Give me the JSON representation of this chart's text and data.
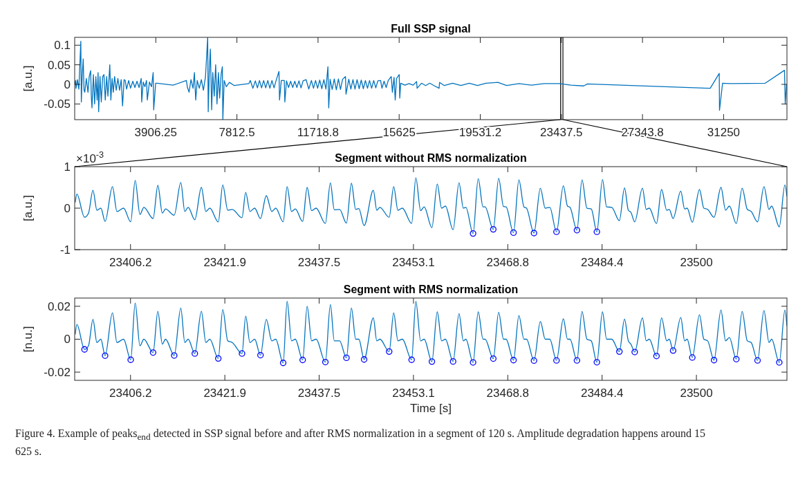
{
  "chart_data": [
    {
      "type": "line",
      "title": "Full SSP signal",
      "ylabel": "[a.u.]",
      "xlim": [
        0,
        34300
      ],
      "ylim": [
        -0.09,
        0.12
      ],
      "xticks": [
        3906.25,
        7812.5,
        {
          "value": 11718.75,
          "label": "11718.8"
        },
        15625,
        {
          "value": 19531.25,
          "label": "19531.2"
        },
        23437.5,
        {
          "value": 27343.75,
          "label": "27343.8"
        },
        31250
      ],
      "yticks": [
        -0.05,
        0,
        0.05,
        0.1
      ],
      "bands": [
        {
          "axis": "x",
          "from": 23397,
          "to": 23515,
          "color": "#000000"
        }
      ],
      "series": [
        {
          "color": "#0072bd",
          "x": [
            0,
            40,
            64,
            128,
            200,
            295,
            320,
            360,
            410,
            450,
            487,
            560,
            640,
            700,
            769,
            800,
            833,
            900,
            960,
            1020,
            1080,
            1127,
            1153,
            1220,
            1280,
            1350,
            1409,
            1473,
            1540,
            1600,
            1691,
            1742,
            1800,
            1860,
            1922,
            2000,
            2080,
            2160,
            2240,
            2306,
            2380,
            2434,
            2500,
            2600,
            2690,
            2800,
            2900,
            3000,
            3100,
            3203,
            3228,
            3300,
            3380,
            3459,
            3497,
            3600,
            3700,
            3779,
            3805,
            3900,
            3971,
            4740,
            5380,
            5430,
            5508,
            5600,
            5700,
            5765,
            5829,
            5900,
            6000,
            6100,
            6200,
            6300,
            6405,
            6431,
            6480,
            6533,
            6597,
            6650,
            6720,
            6789,
            6853,
            6920,
            6980,
            7050,
            7110,
            7135,
            7199,
            7300,
            7450,
            7686,
            8391,
            8455,
            8583,
            8700,
            8800,
            8900,
            9000,
            9100,
            9200,
            9300,
            9400,
            9500,
            9600,
            9700,
            9838,
            9864,
            9950,
            10094,
            10120,
            10200,
            10300,
            10400,
            10500,
            10600,
            10700,
            10800,
            10900,
            11000,
            11145,
            11273,
            11400,
            11500,
            11600,
            11700,
            11800,
            11900,
            12000,
            12100,
            12195,
            12234,
            12300,
            12400,
            12500,
            12600,
            12700,
            12800,
            12900,
            13041,
            13066,
            13200,
            13300,
            13400,
            13500,
            13600,
            13700,
            13800,
            13900,
            14000,
            14100,
            14200,
            14300,
            14400,
            14500,
            14600,
            14732,
            14796,
            14900,
            15000,
            15100,
            15244,
            15300,
            15380,
            15436,
            15500,
            15628,
            15654,
            15701,
            15900,
            16100,
            16300,
            16465,
            16490,
            16700,
            16900,
            17100,
            17300,
            17548,
            17573,
            17800,
            18200,
            18600,
            19000,
            19400,
            19800,
            20383,
            20800,
            21400,
            22000,
            22600,
            23340,
            23900,
            24509,
            24695,
            30607,
            31040,
            31052,
            31200,
            31593,
            33257,
            34181,
            34218,
            34280
          ],
          "values": [
            0,
            0.01,
            -0.01,
            0.012,
            -0.012,
            0.11,
            -0.045,
            0.02,
            0.065,
            -0.015,
            -0.02,
            0.015,
            -0.02,
            0.02,
            0.035,
            -0.03,
            -0.06,
            0.025,
            -0.05,
            0.02,
            -0.04,
            0.03,
            -0.07,
            0.02,
            -0.045,
            0.02,
            0.025,
            -0.04,
            0.02,
            -0.03,
            0.05,
            -0.04,
            0.015,
            -0.02,
            0.02,
            -0.015,
            0.015,
            -0.015,
            0.012,
            -0.055,
            0.012,
            0.01,
            -0.012,
            0.01,
            -0.01,
            0.008,
            -0.008,
            0.008,
            -0.008,
            0.015,
            -0.045,
            0.006,
            -0.006,
            0.01,
            -0.04,
            0.006,
            -0.006,
            0.03,
            -0.065,
            0.003,
            0.003,
            -0.002,
            0.01,
            -0.008,
            -0.02,
            0.012,
            -0.01,
            0.03,
            -0.04,
            0.01,
            -0.01,
            0.012,
            -0.015,
            0.02,
            0.12,
            -0.07,
            0.03,
            0.09,
            -0.065,
            0.03,
            -0.03,
            0.05,
            -0.05,
            0.03,
            -0.035,
            0.025,
            0.045,
            -0.09,
            0.01,
            -0.006,
            0.005,
            -0.003,
            0.002,
            0.01,
            -0.01,
            0.009,
            -0.009,
            0.01,
            -0.009,
            0.01,
            -0.009,
            0.01,
            -0.01,
            0.01,
            -0.009,
            0.01,
            0.033,
            -0.04,
            0.01,
            0.01,
            -0.045,
            0.009,
            -0.008,
            0.008,
            -0.008,
            0.008,
            -0.008,
            0.009,
            -0.009,
            0.009,
            0.012,
            -0.012,
            0.01,
            -0.01,
            0.01,
            -0.01,
            0.011,
            -0.011,
            0.012,
            -0.012,
            0.045,
            -0.06,
            0.013,
            -0.013,
            0.014,
            -0.014,
            0.014,
            -0.013,
            0.013,
            0.02,
            -0.025,
            0.013,
            -0.012,
            0.012,
            -0.012,
            0.012,
            -0.011,
            0.011,
            -0.011,
            0.01,
            -0.01,
            0.01,
            -0.01,
            0.01,
            -0.009,
            0.009,
            0.01,
            -0.01,
            0.008,
            -0.008,
            0.01,
            0.02,
            -0.02,
            0.018,
            -0.04,
            0.015,
            0.025,
            -0.035,
            0.003,
            -0.002,
            0.002,
            -0.002,
            0.007,
            -0.01,
            0.003,
            -0.003,
            0.003,
            -0.003,
            -0.01,
            0.005,
            -0.003,
            0.003,
            -0.003,
            0.003,
            -0.003,
            0.003,
            0.005,
            -0.003,
            0.002,
            -0.002,
            0.002,
            0.002,
            -0.002,
            -0.004,
            0.001,
            -0.01,
            0.028,
            -0.066,
            0.003,
            0.002,
            0.003,
            0.036,
            -0.05,
            0
          ]
        }
      ]
    },
    {
      "type": "line",
      "title": "Segment without RMS normalization",
      "ylabel": "[a.u.]",
      "annotations": [
        "×10$^{-3}$"
      ],
      "xlim": [
        23397,
        23515
      ],
      "ylim": [
        -1,
        1
      ],
      "xticks": [
        {
          "value": 23406.25,
          "label": "23406.2"
        },
        {
          "value": 23421.875,
          "label": "23421.9"
        },
        23437.5,
        {
          "value": 23453.125,
          "label": "23453.1"
        },
        {
          "value": 23468.75,
          "label": "23468.8"
        },
        {
          "value": 23484.375,
          "label": "23484.4"
        },
        23500
      ],
      "yticks": [
        -1,
        0,
        1
      ],
      "x": [
        23397.1,
        23397.36,
        23398.63,
        23399.29,
        23400.03,
        23400.68,
        23401.34,
        23402.04,
        23403.26,
        23404.0,
        23405.1,
        23406.28,
        23407.02,
        23407.81,
        23408.46,
        23409.99,
        23410.78,
        23411.52,
        23412.05,
        23413.49,
        23414.58,
        23415.24,
        23415.8,
        23416.9,
        23417.99,
        23418.73,
        23419.39,
        23420.79,
        23421.53,
        23422.36,
        23423.1,
        23424.72,
        23425.33,
        23426.03,
        23426.82,
        23427.78,
        23428.74,
        23429.66,
        23430.31,
        23431.54,
        23432.19,
        23432.93,
        23433.55,
        23434.77,
        23435.51,
        23436.26,
        23437.0,
        23438.53,
        23439.36,
        23440.01,
        23440.89,
        23442.02,
        23442.85,
        23443.55,
        23444.08,
        23444.95,
        23446.48,
        23447.05,
        23447.57,
        23449.1,
        23449.85,
        23450.55,
        23451.29,
        23452.82,
        23453.52,
        23454.31,
        23454.9,
        23456.18,
        23457.07,
        23457.79,
        23458.42,
        23459.69,
        23460.67,
        23461.39,
        23461.81,
        23463.0,
        23463.85,
        23464.65,
        23464.99,
        23466.35,
        23467.24,
        23468.04,
        23468.47,
        23469.7,
        23470.59,
        23471.43,
        23471.86,
        23473.09,
        23474.15,
        23474.95,
        23475.71,
        23476.82,
        23477.96,
        23478.64,
        23479.06,
        23480.21,
        23481.05,
        23481.86,
        23482.58,
        23483.51,
        23484.44,
        23485.12,
        23485.97,
        23487.24,
        23488.09,
        23488.72,
        23489.15,
        23489.78,
        23491.06,
        23491.69,
        23492.2,
        23493.39,
        23494.23,
        23495.08,
        23495.51,
        23496.14,
        23497.41,
        23498.05,
        23498.47,
        23499.32,
        23500.51,
        23501.23,
        23501.86,
        23502.92,
        23504.07,
        23504.83,
        23505.46,
        23506.61,
        23507.58,
        23508.43,
        23509.07,
        23510.13,
        23511.19,
        23512.03,
        23512.46,
        23513.73,
        23514.66,
        23515.0
      ],
      "series": [
        {
          "color": "#0072bd",
          "values": [
            0.14,
            0.34,
            -0.22,
            -0.12,
            0.43,
            -0.05,
            0,
            -0.32,
            0.52,
            -0.08,
            0,
            -0.33,
            0.67,
            -0.15,
            0.02,
            -0.25,
            0.55,
            -0.12,
            -0.02,
            -0.17,
            0.62,
            -0.08,
            0.02,
            -0.28,
            0.5,
            -0.08,
            0,
            -0.33,
            0.56,
            -0.05,
            -0.03,
            -0.23,
            0.38,
            -0.08,
            0,
            -0.25,
            0.3,
            -0.08,
            0,
            -0.33,
            0.52,
            -0.08,
            -0.02,
            -0.32,
            0.5,
            -0.06,
            0,
            -0.37,
            0.61,
            -0.04,
            -0.03,
            -0.36,
            0.6,
            -0.03,
            -0.01,
            -0.42,
            0.43,
            -0.05,
            0.02,
            -0.22,
            0.52,
            -0.05,
            0,
            -0.37,
            0.73,
            -0.06,
            0.03,
            -0.47,
            0.58,
            0,
            0.05,
            -0.52,
            0.61,
            0,
            0.02,
            -0.61,
            0.71,
            0.03,
            0.03,
            -0.51,
            0.72,
            0.04,
            0.03,
            -0.59,
            0.68,
            0.03,
            0,
            -0.6,
            0.48,
            0,
            0.02,
            -0.57,
            0.54,
            0.05,
            0.02,
            -0.53,
            0.68,
            0,
            -0.02,
            -0.57,
            0.69,
            0.03,
            0.02,
            -0.3,
            0.49,
            -0.05,
            -0.1,
            -0.33,
            0.48,
            -0.03,
            0,
            -0.37,
            0.45,
            -0.05,
            -0.03,
            -0.25,
            0.41,
            -0.02,
            0,
            -0.34,
            0.45,
            0,
            -0.03,
            -0.22,
            0.5,
            -0.05,
            0.05,
            -0.37,
            0.48,
            -0.03,
            -0.08,
            -0.33,
            0.52,
            -0.03,
            0.05,
            -0.45,
            0.56,
            0.28
          ]
        },
        {
          "type": "scatter",
          "marker": "circle",
          "color": "#0000ff",
          "x": [
            23463.0,
            23466.35,
            23469.7,
            23473.09,
            23476.82,
            23480.21,
            23483.51
          ],
          "values": [
            -0.61,
            -0.51,
            -0.59,
            -0.6,
            -0.57,
            -0.53,
            -0.57
          ]
        }
      ]
    },
    {
      "type": "line",
      "title": "Segment with RMS normalization",
      "ylabel": "[n.u.]",
      "xlabel": "Time [s]",
      "annotations": [
        "Figure 4. Example of peaks$_{end}$ detected in SSP signal before and after RMS normalization in a segment of 120 s. Amplitude degradation happens around 15 625 s."
      ],
      "xlim": [
        23397,
        23515
      ],
      "ylim": [
        -0.025,
        0.025
      ],
      "xticks": [
        {
          "value": 23406.25,
          "label": "23406.2"
        },
        {
          "value": 23421.875,
          "label": "23421.9"
        },
        23437.5,
        {
          "value": 23453.125,
          "label": "23453.1"
        },
        {
          "value": 23468.75,
          "label": "23468.8"
        },
        {
          "value": 23484.375,
          "label": "23484.4"
        },
        23500
      ],
      "yticks": [
        -0.02,
        0,
        0.02
      ],
      "x": [
        23397.1,
        23397.36,
        23398.63,
        23399.29,
        23400.03,
        23400.68,
        23401.34,
        23402.04,
        23403.26,
        23404.0,
        23405.1,
        23406.28,
        23407.02,
        23407.81,
        23408.46,
        23409.99,
        23410.78,
        23411.52,
        23412.05,
        23413.49,
        23414.58,
        23415.24,
        23415.8,
        23416.9,
        23417.99,
        23418.73,
        23419.39,
        23420.79,
        23421.53,
        23422.36,
        23423.1,
        23424.72,
        23425.33,
        23426.03,
        23426.82,
        23427.78,
        23428.74,
        23429.66,
        23430.31,
        23431.54,
        23432.19,
        23432.93,
        23433.55,
        23434.77,
        23435.51,
        23436.26,
        23437.0,
        23438.53,
        23439.36,
        23440.01,
        23440.89,
        23442.02,
        23442.85,
        23443.55,
        23444.08,
        23444.95,
        23446.48,
        23447.05,
        23447.57,
        23449.1,
        23449.85,
        23450.55,
        23451.29,
        23452.82,
        23453.52,
        23454.31,
        23454.9,
        23456.18,
        23457.07,
        23457.79,
        23458.42,
        23459.69,
        23460.67,
        23461.39,
        23461.81,
        23463.0,
        23463.85,
        23464.65,
        23464.99,
        23466.35,
        23467.24,
        23468.04,
        23468.47,
        23469.7,
        23470.59,
        23471.43,
        23471.86,
        23473.09,
        23474.15,
        23474.95,
        23475.71,
        23476.82,
        23477.96,
        23478.64,
        23479.06,
        23480.21,
        23481.05,
        23481.86,
        23482.58,
        23483.51,
        23484.44,
        23485.12,
        23485.97,
        23487.24,
        23488.09,
        23488.72,
        23489.15,
        23489.78,
        23491.06,
        23491.69,
        23492.2,
        23493.39,
        23494.23,
        23495.08,
        23495.51,
        23496.14,
        23497.41,
        23498.05,
        23498.47,
        23499.32,
        23500.51,
        23501.23,
        23501.86,
        23502.92,
        23504.07,
        23504.83,
        23505.46,
        23506.61,
        23507.58,
        23508.43,
        23509.07,
        23510.13,
        23511.19,
        23512.03,
        23512.46,
        23513.73,
        23514.66,
        23515.0
      ],
      "series": [
        {
          "color": "#0072bd",
          "values": [
            0.003,
            0.009,
            -0.0062,
            -0.004,
            0.012,
            -0.002,
            0,
            -0.01,
            0.016,
            -0.002,
            0,
            -0.0125,
            0.022,
            -0.004,
            0,
            -0.0081,
            0.017,
            -0.003,
            0,
            -0.0099,
            0.019,
            -0.002,
            0,
            -0.0087,
            0.017,
            -0.002,
            0,
            -0.0117,
            0.018,
            -0.001,
            -0.002,
            -0.0087,
            0.014,
            -0.002,
            0,
            -0.0097,
            0.012,
            -0.001,
            0,
            -0.0144,
            0.023,
            -0.001,
            0,
            -0.0126,
            0.02,
            -0.001,
            0,
            -0.0139,
            0.021,
            -0.001,
            -0.001,
            -0.0113,
            0.019,
            0,
            0,
            -0.0123,
            0.013,
            -0.001,
            0,
            -0.0075,
            0.016,
            -0.001,
            0,
            -0.0125,
            0.023,
            -0.001,
            0,
            -0.0136,
            0.0166,
            -0.001,
            0,
            -0.0135,
            0.0155,
            -0.001,
            0,
            -0.0141,
            0.0166,
            0,
            0,
            -0.0118,
            0.0163,
            0,
            0,
            -0.0127,
            0.0143,
            0,
            0,
            -0.013,
            0.0108,
            0,
            0,
            -0.0129,
            0.0124,
            0,
            0,
            -0.0129,
            0.0169,
            0,
            -0.001,
            -0.014,
            0.0166,
            0,
            0,
            -0.0075,
            0.0122,
            -0.001,
            -0.003,
            -0.0078,
            0.013,
            -0.001,
            0,
            -0.0102,
            0.013,
            -0.001,
            0,
            -0.0069,
            0.0132,
            -0.001,
            0,
            -0.0111,
            0.0149,
            0,
            -0.001,
            -0.0127,
            0.0177,
            -0.001,
            0.001,
            -0.0121,
            0.0169,
            -0.001,
            -0.002,
            -0.0129,
            0.0174,
            -0.002,
            0,
            -0.0141,
            0.0177,
            0.008
          ]
        },
        {
          "type": "scatter",
          "marker": "circle",
          "color": "#0000ff",
          "x": [
            23398.63,
            23402.04,
            23406.28,
            23409.99,
            23413.49,
            23416.9,
            23420.79,
            23424.72,
            23427.78,
            23431.54,
            23434.77,
            23438.53,
            23442.02,
            23444.95,
            23449.1,
            23452.82,
            23456.18,
            23459.69,
            23463.0,
            23466.35,
            23469.7,
            23473.09,
            23476.82,
            23480.21,
            23483.51,
            23487.24,
            23489.78,
            23493.39,
            23496.14,
            23499.32,
            23502.92,
            23506.61,
            23510.13,
            23513.73
          ],
          "values": [
            -0.0062,
            -0.01,
            -0.0125,
            -0.0081,
            -0.0099,
            -0.0087,
            -0.0117,
            -0.0087,
            -0.0097,
            -0.0144,
            -0.0126,
            -0.0139,
            -0.0113,
            -0.0123,
            -0.0075,
            -0.0125,
            -0.0136,
            -0.0135,
            -0.0141,
            -0.0118,
            -0.0127,
            -0.013,
            -0.0129,
            -0.0129,
            -0.014,
            -0.0075,
            -0.0078,
            -0.0102,
            -0.0069,
            -0.0111,
            -0.0127,
            -0.0121,
            -0.0129,
            -0.0141
          ]
        }
      ]
    }
  ]
}
